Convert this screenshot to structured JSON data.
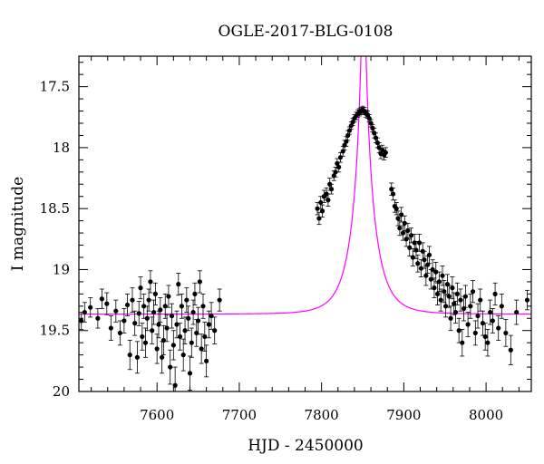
{
  "chart_data": {
    "type": "scatter",
    "title": "OGLE-2017-BLG-0108",
    "xlabel": "HJD - 2450000",
    "ylabel": "I magnitude",
    "xlim": [
      7505,
      8055
    ],
    "ylim": [
      20.0,
      17.25
    ],
    "y_inverted": true,
    "grid": false,
    "legend": "none",
    "x_ticks": [
      {
        "v": 7600,
        "label": "7600"
      },
      {
        "v": 7700,
        "label": "7700"
      },
      {
        "v": 7800,
        "label": "7800"
      },
      {
        "v": 7900,
        "label": "7900"
      },
      {
        "v": 8000,
        "label": "8000"
      }
    ],
    "y_ticks": [
      {
        "v": 17.5,
        "label": "17.5"
      },
      {
        "v": 18.0,
        "label": "18"
      },
      {
        "v": 18.5,
        "label": "18.5"
      },
      {
        "v": 19.0,
        "label": "19"
      },
      {
        "v": 19.5,
        "label": "19.5"
      },
      {
        "v": 20.0,
        "label": "20"
      }
    ],
    "series": [
      {
        "type": "scatter_with_errorbars",
        "color": "#000000",
        "points": [
          {
            "x": 7508,
            "y": 19.42,
            "err": 0.07
          },
          {
            "x": 7512,
            "y": 19.35,
            "err": 0.08
          },
          {
            "x": 7519,
            "y": 19.31,
            "err": 0.08
          },
          {
            "x": 7528,
            "y": 19.4,
            "err": 0.08
          },
          {
            "x": 7533,
            "y": 19.24,
            "err": 0.08
          },
          {
            "x": 7539,
            "y": 19.28,
            "err": 0.09
          },
          {
            "x": 7544,
            "y": 19.48,
            "err": 0.1
          },
          {
            "x": 7550,
            "y": 19.34,
            "err": 0.09
          },
          {
            "x": 7555,
            "y": 19.52,
            "err": 0.1
          },
          {
            "x": 7560,
            "y": 19.42,
            "err": 0.1
          },
          {
            "x": 7564,
            "y": 19.29,
            "err": 0.09
          },
          {
            "x": 7567,
            "y": 19.7,
            "err": 0.12
          },
          {
            "x": 7570,
            "y": 19.25,
            "err": 0.1
          },
          {
            "x": 7573,
            "y": 19.44,
            "err": 0.1
          },
          {
            "x": 7576,
            "y": 19.72,
            "err": 0.13
          },
          {
            "x": 7578,
            "y": 19.36,
            "err": 0.1
          },
          {
            "x": 7580,
            "y": 19.15,
            "err": 0.09
          },
          {
            "x": 7582,
            "y": 19.55,
            "err": 0.11
          },
          {
            "x": 7584,
            "y": 19.3,
            "err": 0.1
          },
          {
            "x": 7586,
            "y": 19.6,
            "err": 0.12
          },
          {
            "x": 7588,
            "y": 19.4,
            "err": 0.1
          },
          {
            "x": 7590,
            "y": 19.25,
            "err": 0.09
          },
          {
            "x": 7592,
            "y": 19.1,
            "err": 0.09
          },
          {
            "x": 7594,
            "y": 19.5,
            "err": 0.11
          },
          {
            "x": 7596,
            "y": 19.35,
            "err": 0.1
          },
          {
            "x": 7598,
            "y": 19.2,
            "err": 0.09
          },
          {
            "x": 7600,
            "y": 19.65,
            "err": 0.12
          },
          {
            "x": 7602,
            "y": 19.45,
            "err": 0.11
          },
          {
            "x": 7604,
            "y": 19.33,
            "err": 0.1
          },
          {
            "x": 7606,
            "y": 19.72,
            "err": 0.13
          },
          {
            "x": 7608,
            "y": 19.58,
            "err": 0.12
          },
          {
            "x": 7610,
            "y": 19.3,
            "err": 0.1
          },
          {
            "x": 7612,
            "y": 19.48,
            "err": 0.11
          },
          {
            "x": 7614,
            "y": 19.22,
            "err": 0.09
          },
          {
            "x": 7616,
            "y": 19.8,
            "err": 0.14
          },
          {
            "x": 7618,
            "y": 19.38,
            "err": 0.1
          },
          {
            "x": 7620,
            "y": 19.62,
            "err": 0.12
          },
          {
            "x": 7622,
            "y": 19.95,
            "err": 0.15
          },
          {
            "x": 7624,
            "y": 19.45,
            "err": 0.11
          },
          {
            "x": 7626,
            "y": 19.12,
            "err": 0.09
          },
          {
            "x": 7628,
            "y": 19.55,
            "err": 0.11
          },
          {
            "x": 7630,
            "y": 19.3,
            "err": 0.1
          },
          {
            "x": 7632,
            "y": 19.7,
            "err": 0.13
          },
          {
            "x": 7634,
            "y": 19.5,
            "err": 0.11
          },
          {
            "x": 7636,
            "y": 19.25,
            "err": 0.1
          },
          {
            "x": 7638,
            "y": 19.4,
            "err": 0.1
          },
          {
            "x": 7640,
            "y": 19.85,
            "err": 0.14
          },
          {
            "x": 7642,
            "y": 19.6,
            "err": 0.12
          },
          {
            "x": 7644,
            "y": 19.35,
            "err": 0.1
          },
          {
            "x": 7646,
            "y": 19.2,
            "err": 0.09
          },
          {
            "x": 7648,
            "y": 19.52,
            "err": 0.11
          },
          {
            "x": 7650,
            "y": 19.42,
            "err": 0.11
          },
          {
            "x": 7652,
            "y": 19.1,
            "err": 0.09
          },
          {
            "x": 7654,
            "y": 19.65,
            "err": 0.12
          },
          {
            "x": 7656,
            "y": 19.3,
            "err": 0.1
          },
          {
            "x": 7658,
            "y": 19.55,
            "err": 0.12
          },
          {
            "x": 7660,
            "y": 19.75,
            "err": 0.13
          },
          {
            "x": 7663,
            "y": 19.45,
            "err": 0.11
          },
          {
            "x": 7666,
            "y": 19.38,
            "err": 0.11
          },
          {
            "x": 7670,
            "y": 19.5,
            "err": 0.11
          },
          {
            "x": 7676,
            "y": 19.25,
            "err": 0.09
          },
          {
            "x": 7795,
            "y": 18.5,
            "err": 0.05
          },
          {
            "x": 7797,
            "y": 18.58,
            "err": 0.05
          },
          {
            "x": 7799,
            "y": 18.45,
            "err": 0.05
          },
          {
            "x": 7801,
            "y": 18.52,
            "err": 0.05
          },
          {
            "x": 7803,
            "y": 18.4,
            "err": 0.05
          },
          {
            "x": 7806,
            "y": 18.38,
            "err": 0.05
          },
          {
            "x": 7808,
            "y": 18.43,
            "err": 0.05
          },
          {
            "x": 7810,
            "y": 18.3,
            "err": 0.05
          },
          {
            "x": 7812,
            "y": 18.34,
            "err": 0.04
          },
          {
            "x": 7815,
            "y": 18.23,
            "err": 0.04
          },
          {
            "x": 7817,
            "y": 18.2,
            "err": 0.04
          },
          {
            "x": 7819,
            "y": 18.13,
            "err": 0.04
          },
          {
            "x": 7821,
            "y": 18.16,
            "err": 0.04
          },
          {
            "x": 7823,
            "y": 18.08,
            "err": 0.04
          },
          {
            "x": 7826,
            "y": 18.03,
            "err": 0.04
          },
          {
            "x": 7828,
            "y": 17.98,
            "err": 0.04
          },
          {
            "x": 7830,
            "y": 17.95,
            "err": 0.04
          },
          {
            "x": 7832,
            "y": 17.9,
            "err": 0.04
          },
          {
            "x": 7834,
            "y": 17.86,
            "err": 0.03
          },
          {
            "x": 7836,
            "y": 17.82,
            "err": 0.03
          },
          {
            "x": 7838,
            "y": 17.79,
            "err": 0.03
          },
          {
            "x": 7840,
            "y": 17.76,
            "err": 0.03
          },
          {
            "x": 7842,
            "y": 17.74,
            "err": 0.03
          },
          {
            "x": 7844,
            "y": 17.72,
            "err": 0.03
          },
          {
            "x": 7846,
            "y": 17.71,
            "err": 0.03
          },
          {
            "x": 7848,
            "y": 17.7,
            "err": 0.03
          },
          {
            "x": 7850,
            "y": 17.69,
            "err": 0.03
          },
          {
            "x": 7852,
            "y": 17.7,
            "err": 0.03
          },
          {
            "x": 7854,
            "y": 17.72,
            "err": 0.03
          },
          {
            "x": 7856,
            "y": 17.73,
            "err": 0.03
          },
          {
            "x": 7858,
            "y": 17.76,
            "err": 0.03
          },
          {
            "x": 7860,
            "y": 17.8,
            "err": 0.03
          },
          {
            "x": 7862,
            "y": 17.84,
            "err": 0.03
          },
          {
            "x": 7864,
            "y": 17.88,
            "err": 0.04
          },
          {
            "x": 7866,
            "y": 17.92,
            "err": 0.04
          },
          {
            "x": 7868,
            "y": 17.96,
            "err": 0.04
          },
          {
            "x": 7870,
            "y": 18.0,
            "err": 0.04
          },
          {
            "x": 7872,
            "y": 18.05,
            "err": 0.04
          },
          {
            "x": 7874,
            "y": 18.02,
            "err": 0.04
          },
          {
            "x": 7876,
            "y": 18.06,
            "err": 0.04
          },
          {
            "x": 7878,
            "y": 18.04,
            "err": 0.04
          },
          {
            "x": 7885,
            "y": 18.34,
            "err": 0.05
          },
          {
            "x": 7887,
            "y": 18.38,
            "err": 0.05
          },
          {
            "x": 7889,
            "y": 18.48,
            "err": 0.05
          },
          {
            "x": 7891,
            "y": 18.5,
            "err": 0.05
          },
          {
            "x": 7893,
            "y": 18.58,
            "err": 0.06
          },
          {
            "x": 7895,
            "y": 18.66,
            "err": 0.06
          },
          {
            "x": 7897,
            "y": 18.55,
            "err": 0.06
          },
          {
            "x": 7899,
            "y": 18.7,
            "err": 0.06
          },
          {
            "x": 7901,
            "y": 18.62,
            "err": 0.06
          },
          {
            "x": 7903,
            "y": 18.75,
            "err": 0.06
          },
          {
            "x": 7905,
            "y": 18.68,
            "err": 0.06
          },
          {
            "x": 7907,
            "y": 18.82,
            "err": 0.07
          },
          {
            "x": 7909,
            "y": 18.72,
            "err": 0.06
          },
          {
            "x": 7911,
            "y": 18.9,
            "err": 0.07
          },
          {
            "x": 7913,
            "y": 18.78,
            "err": 0.07
          },
          {
            "x": 7915,
            "y": 18.84,
            "err": 0.07
          },
          {
            "x": 7917,
            "y": 18.95,
            "err": 0.07
          },
          {
            "x": 7919,
            "y": 18.78,
            "err": 0.07
          },
          {
            "x": 7921,
            "y": 18.99,
            "err": 0.07
          },
          {
            "x": 7923,
            "y": 18.85,
            "err": 0.07
          },
          {
            "x": 7925,
            "y": 18.92,
            "err": 0.07
          },
          {
            "x": 7927,
            "y": 19.05,
            "err": 0.08
          },
          {
            "x": 7929,
            "y": 18.96,
            "err": 0.07
          },
          {
            "x": 7931,
            "y": 18.88,
            "err": 0.07
          },
          {
            "x": 7933,
            "y": 19.08,
            "err": 0.08
          },
          {
            "x": 7935,
            "y": 19.0,
            "err": 0.08
          },
          {
            "x": 7937,
            "y": 19.15,
            "err": 0.08
          },
          {
            "x": 7939,
            "y": 19.02,
            "err": 0.08
          },
          {
            "x": 7941,
            "y": 19.2,
            "err": 0.09
          },
          {
            "x": 7943,
            "y": 19.1,
            "err": 0.08
          },
          {
            "x": 7945,
            "y": 19.25,
            "err": 0.09
          },
          {
            "x": 7947,
            "y": 19.05,
            "err": 0.08
          },
          {
            "x": 7949,
            "y": 19.18,
            "err": 0.09
          },
          {
            "x": 7951,
            "y": 19.3,
            "err": 0.09
          },
          {
            "x": 7953,
            "y": 19.12,
            "err": 0.08
          },
          {
            "x": 7955,
            "y": 19.22,
            "err": 0.09
          },
          {
            "x": 7957,
            "y": 19.4,
            "err": 0.1
          },
          {
            "x": 7959,
            "y": 19.15,
            "err": 0.09
          },
          {
            "x": 7961,
            "y": 19.28,
            "err": 0.09
          },
          {
            "x": 7963,
            "y": 19.35,
            "err": 0.09
          },
          {
            "x": 7965,
            "y": 19.2,
            "err": 0.09
          },
          {
            "x": 7967,
            "y": 19.5,
            "err": 0.1
          },
          {
            "x": 7969,
            "y": 19.25,
            "err": 0.09
          },
          {
            "x": 7971,
            "y": 19.6,
            "err": 0.11
          },
          {
            "x": 7973,
            "y": 19.32,
            "err": 0.1
          },
          {
            "x": 7975,
            "y": 19.22,
            "err": 0.09
          },
          {
            "x": 7978,
            "y": 19.45,
            "err": 0.1
          },
          {
            "x": 7981,
            "y": 19.3,
            "err": 0.1
          },
          {
            "x": 7984,
            "y": 19.18,
            "err": 0.09
          },
          {
            "x": 7987,
            "y": 19.52,
            "err": 0.1
          },
          {
            "x": 7990,
            "y": 19.38,
            "err": 0.1
          },
          {
            "x": 7993,
            "y": 19.25,
            "err": 0.09
          },
          {
            "x": 7996,
            "y": 19.44,
            "err": 0.1
          },
          {
            "x": 7999,
            "y": 19.55,
            "err": 0.11
          },
          {
            "x": 8002,
            "y": 19.6,
            "err": 0.11
          },
          {
            "x": 8005,
            "y": 19.35,
            "err": 0.1
          },
          {
            "x": 8008,
            "y": 19.42,
            "err": 0.1
          },
          {
            "x": 8011,
            "y": 19.2,
            "err": 0.09
          },
          {
            "x": 8015,
            "y": 19.48,
            "err": 0.1
          },
          {
            "x": 8019,
            "y": 19.3,
            "err": 0.1
          },
          {
            "x": 8024,
            "y": 19.52,
            "err": 0.11
          },
          {
            "x": 8030,
            "y": 19.66,
            "err": 0.12
          },
          {
            "x": 8037,
            "y": 19.35,
            "err": 0.1
          },
          {
            "x": 8050,
            "y": 19.25,
            "err": 0.08
          }
        ]
      },
      {
        "type": "line",
        "color": "#ff00ff",
        "model": {
          "t0": 7851,
          "u0": 0.082,
          "tE": 26,
          "baseline": 19.365
        }
      }
    ]
  }
}
